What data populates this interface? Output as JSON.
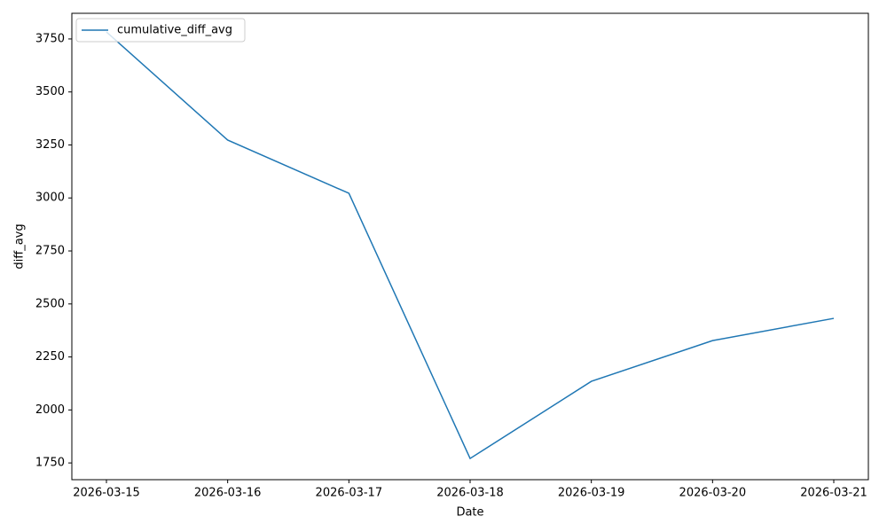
{
  "chart_data": {
    "type": "line",
    "x": [
      "2026-03-15",
      "2026-03-16",
      "2026-03-17",
      "2026-03-18",
      "2026-03-19",
      "2026-03-20",
      "2026-03-21"
    ],
    "series": [
      {
        "name": "cumulative_diff_avg",
        "color": "#1f77b4",
        "values": [
          3783,
          3273,
          3022,
          1771,
          2135,
          2327,
          2432
        ]
      }
    ],
    "xlabel": "Date",
    "ylabel": "diff_avg",
    "ylim": [
      1671,
      3871
    ],
    "yticks": [
      1750,
      2000,
      2250,
      2500,
      2750,
      3000,
      3250,
      3500,
      3750
    ],
    "grid": false,
    "legend": "upper left"
  }
}
